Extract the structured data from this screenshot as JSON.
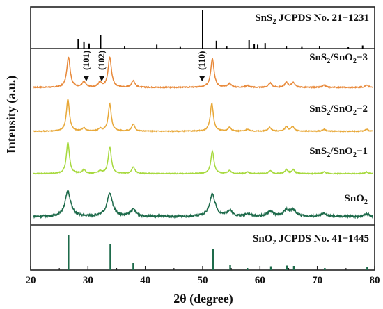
{
  "chart_data": {
    "type": "line",
    "xlabel": "2θ (degree)",
    "ylabel": "Intensity (a.u.)",
    "xlim": [
      20,
      80
    ],
    "xticks": [
      20,
      30,
      40,
      50,
      60,
      70,
      80
    ],
    "grid": false,
    "reference_top": {
      "label_main": "SnS",
      "label_sub": "2",
      "label_rest": " JCPDS No. 21−1231",
      "color": "#000000",
      "lines": [
        {
          "x": 28.3,
          "h": 0.25
        },
        {
          "x": 29.3,
          "h": 0.18
        },
        {
          "x": 30.2,
          "h": 0.13
        },
        {
          "x": 32.2,
          "h": 0.35
        },
        {
          "x": 36.4,
          "h": 0.07
        },
        {
          "x": 42.0,
          "h": 0.1
        },
        {
          "x": 46.1,
          "h": 0.06
        },
        {
          "x": 50.0,
          "h": 1.0
        },
        {
          "x": 52.4,
          "h": 0.2
        },
        {
          "x": 54.2,
          "h": 0.07
        },
        {
          "x": 58.1,
          "h": 0.22
        },
        {
          "x": 59.0,
          "h": 0.12
        },
        {
          "x": 59.6,
          "h": 0.1
        },
        {
          "x": 60.9,
          "h": 0.14
        },
        {
          "x": 64.6,
          "h": 0.07
        },
        {
          "x": 67.3,
          "h": 0.06
        },
        {
          "x": 70.4,
          "h": 0.07
        },
        {
          "x": 75.4,
          "h": 0.05
        },
        {
          "x": 77.9,
          "h": 0.08
        }
      ]
    },
    "reference_bottom": {
      "label_main": "SnO",
      "label_sub": "2",
      "label_rest": " JCPDS No. 41−1445",
      "color": "#1e6b4b",
      "lines": [
        {
          "x": 26.6,
          "h": 1.0
        },
        {
          "x": 33.9,
          "h": 0.76
        },
        {
          "x": 37.9,
          "h": 0.2
        },
        {
          "x": 51.8,
          "h": 0.62
        },
        {
          "x": 54.8,
          "h": 0.14
        },
        {
          "x": 57.8,
          "h": 0.06
        },
        {
          "x": 61.9,
          "h": 0.11
        },
        {
          "x": 64.7,
          "h": 0.13
        },
        {
          "x": 65.9,
          "h": 0.12
        },
        {
          "x": 71.3,
          "h": 0.06
        },
        {
          "x": 78.7,
          "h": 0.08
        }
      ]
    },
    "series": [
      {
        "name_main": "SnS",
        "name_sub": "2",
        "name_mid": "/SnO",
        "name_sub2": "2",
        "name_rest": "−3",
        "color": "#e8893a",
        "noise": 0.7,
        "width": 0.35,
        "peaks": [
          {
            "x": 26.6,
            "h": 1.0
          },
          {
            "x": 29.3,
            "h": 0.18
          },
          {
            "x": 32.1,
            "h": 0.16
          },
          {
            "x": 33.8,
            "h": 0.98
          },
          {
            "x": 37.9,
            "h": 0.22
          },
          {
            "x": 51.7,
            "h": 0.95
          },
          {
            "x": 54.7,
            "h": 0.12
          },
          {
            "x": 57.8,
            "h": 0.06
          },
          {
            "x": 61.8,
            "h": 0.14
          },
          {
            "x": 64.6,
            "h": 0.16
          },
          {
            "x": 65.8,
            "h": 0.16
          },
          {
            "x": 71.2,
            "h": 0.07
          },
          {
            "x": 78.6,
            "h": 0.07
          }
        ]
      },
      {
        "name_main": "SnS",
        "name_sub": "2",
        "name_mid": "/SnO",
        "name_sub2": "2",
        "name_rest": "−2",
        "color": "#e8a838",
        "noise": 0.6,
        "width": 0.32,
        "peaks": [
          {
            "x": 26.5,
            "h": 1.0
          },
          {
            "x": 29.3,
            "h": 0.1
          },
          {
            "x": 32.1,
            "h": 0.08
          },
          {
            "x": 33.8,
            "h": 0.85
          },
          {
            "x": 37.9,
            "h": 0.22
          },
          {
            "x": 51.6,
            "h": 0.88
          },
          {
            "x": 54.7,
            "h": 0.12
          },
          {
            "x": 57.8,
            "h": 0.06
          },
          {
            "x": 61.7,
            "h": 0.12
          },
          {
            "x": 64.6,
            "h": 0.14
          },
          {
            "x": 65.7,
            "h": 0.14
          },
          {
            "x": 71.2,
            "h": 0.06
          },
          {
            "x": 78.6,
            "h": 0.06
          }
        ]
      },
      {
        "name_main": "SnS",
        "name_sub": "2",
        "name_mid": "/SnO",
        "name_sub2": "2",
        "name_rest": "−1",
        "color": "#a7d93e",
        "noise": 0.6,
        "width": 0.32,
        "peaks": [
          {
            "x": 26.5,
            "h": 1.0
          },
          {
            "x": 29.3,
            "h": 0.12
          },
          {
            "x": 32.1,
            "h": 0.08
          },
          {
            "x": 33.8,
            "h": 0.86
          },
          {
            "x": 37.9,
            "h": 0.22
          },
          {
            "x": 51.7,
            "h": 0.72
          },
          {
            "x": 54.7,
            "h": 0.1
          },
          {
            "x": 57.8,
            "h": 0.05
          },
          {
            "x": 61.8,
            "h": 0.1
          },
          {
            "x": 64.6,
            "h": 0.12
          },
          {
            "x": 65.8,
            "h": 0.12
          },
          {
            "x": 71.2,
            "h": 0.06
          },
          {
            "x": 78.6,
            "h": 0.05
          }
        ]
      },
      {
        "name_main": "SnO",
        "name_sub": "2",
        "name_mid": "",
        "name_sub2": "",
        "name_rest": "",
        "color": "#1e6b4b",
        "noise": 1.6,
        "width": 0.6,
        "peaks": [
          {
            "x": 26.5,
            "h": 0.9
          },
          {
            "x": 33.8,
            "h": 0.82
          },
          {
            "x": 37.9,
            "h": 0.25
          },
          {
            "x": 51.7,
            "h": 0.8
          },
          {
            "x": 54.7,
            "h": 0.2
          },
          {
            "x": 57.8,
            "h": 0.1
          },
          {
            "x": 61.8,
            "h": 0.18
          },
          {
            "x": 64.6,
            "h": 0.22
          },
          {
            "x": 65.8,
            "h": 0.22
          },
          {
            "x": 71.2,
            "h": 0.1
          },
          {
            "x": 78.6,
            "h": 0.1
          }
        ]
      }
    ],
    "annotations": [
      {
        "x": 29.7,
        "label": "(101)"
      },
      {
        "x": 32.4,
        "label": "(102)"
      },
      {
        "x": 49.9,
        "label": "(110)"
      }
    ]
  }
}
